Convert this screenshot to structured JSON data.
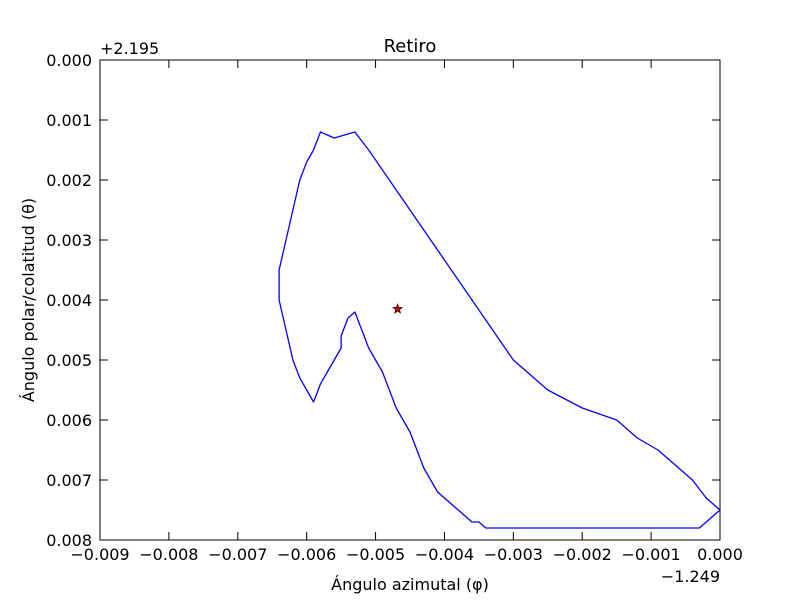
{
  "chart_data": {
    "type": "line",
    "title": "Retiro",
    "xlabel": "Ángulo azimutal (φ)",
    "ylabel": "Ángulo polar/colatitud (θ)",
    "x_offset_label": "−1.249",
    "y_offset_label": "+2.195",
    "xlim": [
      -0.009,
      0.0
    ],
    "ylim": [
      0.008,
      0.0
    ],
    "y_inverted": true,
    "grid": false,
    "x_ticks": [
      -0.009,
      -0.008,
      -0.007,
      -0.006,
      -0.005,
      -0.004,
      -0.003,
      -0.002,
      -0.001,
      0.0
    ],
    "x_tick_labels": [
      "−0.009",
      "−0.008",
      "−0.007",
      "−0.006",
      "−0.005",
      "−0.004",
      "−0.003",
      "−0.002",
      "−0.001",
      "0.000"
    ],
    "y_ticks": [
      0.0,
      0.001,
      0.002,
      0.003,
      0.004,
      0.005,
      0.006,
      0.007,
      0.008
    ],
    "y_tick_labels": [
      "0.000",
      "0.001",
      "0.002",
      "0.003",
      "0.004",
      "0.005",
      "0.006",
      "0.007",
      "0.008"
    ],
    "boundary_color": "#0000ff",
    "marker_color": "#cc0000",
    "series": [
      {
        "kind": "boundary",
        "x": [
          -0.0003,
          0.0,
          -0.0002,
          -0.0004,
          -0.0006,
          -0.0007,
          -0.0009,
          -0.0012,
          -0.0015,
          -0.002,
          -0.0025,
          -0.003,
          -0.0033,
          -0.0036,
          -0.0039,
          -0.0042,
          -0.0045,
          -0.0048,
          -0.0051,
          -0.0053,
          -0.0056,
          -0.0058,
          -0.0059,
          -0.006,
          -0.0061,
          -0.0062,
          -0.0063,
          -0.0064,
          -0.0064,
          -0.0063,
          -0.0062,
          -0.0061,
          -0.006,
          -0.0059,
          -0.0058,
          -0.0057,
          -0.0056,
          -0.0055,
          -0.0055,
          -0.0054,
          -0.0053,
          -0.0052,
          -0.0051,
          -0.005,
          -0.0049,
          -0.0048,
          -0.0047,
          -0.0046,
          -0.0045,
          -0.0044,
          -0.0043,
          -0.0042,
          -0.0041,
          -0.004,
          -0.0039,
          -0.0038,
          -0.0037,
          -0.0036,
          -0.0035,
          -0.0034,
          -0.0033,
          -0.0032,
          -0.0031,
          -0.003,
          -0.0029,
          -0.0028,
          -0.0027,
          -0.0026,
          -0.0025,
          -0.0024,
          -0.0023,
          -0.0022,
          -0.0021,
          -0.002,
          -0.0019,
          -0.0018,
          -0.0017,
          -0.0016,
          -0.0015,
          -0.0014,
          -0.0013,
          -0.0012,
          -0.0011,
          -0.001,
          -0.0009,
          -0.0008,
          -0.0007,
          -0.0006,
          -0.0005,
          -0.0004
        ],
        "y": [
          0.0078,
          0.0075,
          0.0073,
          0.007,
          0.0068,
          0.0067,
          0.0065,
          0.0063,
          0.006,
          0.0058,
          0.0055,
          0.005,
          0.0045,
          0.004,
          0.0035,
          0.003,
          0.0025,
          0.002,
          0.0015,
          0.0012,
          0.0013,
          0.0012,
          0.0015,
          0.0017,
          0.002,
          0.0025,
          0.003,
          0.0035,
          0.004,
          0.0045,
          0.005,
          0.0053,
          0.0055,
          0.0057,
          0.0054,
          0.0052,
          0.005,
          0.0048,
          0.0046,
          0.0043,
          0.0042,
          0.0045,
          0.0048,
          0.005,
          0.0052,
          0.0055,
          0.0058,
          0.006,
          0.0062,
          0.0065,
          0.0068,
          0.007,
          0.0072,
          0.0073,
          0.0074,
          0.0075,
          0.0076,
          0.0077,
          0.0077,
          0.0078,
          0.0078,
          0.0078,
          0.0078,
          0.0078,
          0.0078,
          0.0078,
          0.0078,
          0.0078,
          0.0078,
          0.0078,
          0.0078,
          0.0078,
          0.0078,
          0.0078,
          0.0078,
          0.0078,
          0.0078,
          0.0078,
          0.0078,
          0.0078,
          0.0078,
          0.0078,
          0.0078,
          0.0078,
          0.0078,
          0.0078,
          0.0078,
          0.0078,
          0.0078,
          0.0078
        ]
      },
      {
        "kind": "marker",
        "x": [
          -0.00468
        ],
        "y": [
          0.00415
        ]
      }
    ]
  }
}
